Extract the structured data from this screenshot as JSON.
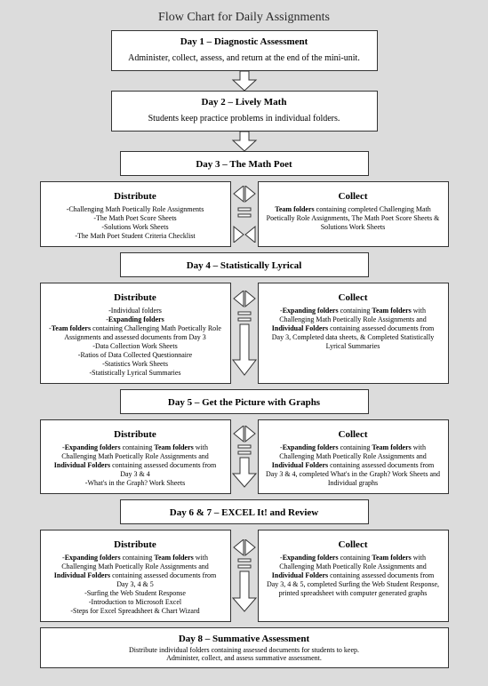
{
  "title": "Flow Chart for Daily Assignments",
  "day1": {
    "head": "Day 1 – Diagnostic Assessment",
    "sub": "Administer, collect, assess, and return at the end of the mini-unit."
  },
  "day2": {
    "head": "Day 2 – Lively Math",
    "sub": "Students keep practice problems in individual folders."
  },
  "day3": {
    "head": "Day 3 – The Math Poet"
  },
  "day3_dist": {
    "hdr": "Distribute",
    "items": [
      "-Challenging Math Poetically Role Assignments",
      "-The Math Poet Score Sheets",
      "-Solutions Work Sheets",
      "-The Math Poet Student Criteria Checklist"
    ]
  },
  "day3_coll": {
    "hdr": "Collect",
    "items": [
      "Team folders containing completed Challenging Math Poetically Role Assignments, The Math Poet Score Sheets & Solutions Work Sheets"
    ]
  },
  "day4": {
    "head": "Day 4 – Statistically Lyrical"
  },
  "day4_dist": {
    "hdr": "Distribute",
    "items": [
      "-Individual folders",
      "-Expanding folders",
      "-Team folders containing Challenging Math Poetically Role Assignments and assessed documents from Day 3",
      "-Data Collection Work Sheets",
      "-Ratios of Data Collected Questionnaire",
      "-Statistics Work Sheets",
      "-Statistically Lyrical Summaries"
    ]
  },
  "day4_coll": {
    "hdr": "Collect",
    "items": [
      "-Expanding folders containing Team folders with Challenging Math Poetically Role Assignments and Individual Folders containing assessed documents from Day 3, Completed data sheets, & Completed Statistically Lyrical Summaries"
    ]
  },
  "day5": {
    "head": "Day 5 – Get the Picture with Graphs"
  },
  "day5_dist": {
    "hdr": "Distribute",
    "items": [
      "-Expanding folders containing Team folders with Challenging Math Poetically Role Assignments and Individual Folders containing assessed documents from Day 3 & 4",
      "-What's in the Graph? Work Sheets"
    ]
  },
  "day5_coll": {
    "hdr": "Collect",
    "items": [
      "-Expanding folders containing Team folders with Challenging Math Poetically Role Assignments and Individual Folders containing assessed documents from Day 3 & 4, completed What's in the Graph? Work Sheets and Individual graphs"
    ]
  },
  "day67": {
    "head": "Day 6 & 7 – EXCEL It! and Review"
  },
  "day67_dist": {
    "hdr": "Distribute",
    "items": [
      "-Expanding folders containing Team folders with Challenging Math Poetically Role Assignments and Individual Folders containing assessed documents from Day 3, 4 & 5",
      "-Surfing the Web Student Response",
      "-Introduction to Microsoft Excel",
      "-Steps for Excel Spreadsheet & Chart Wizard"
    ]
  },
  "day67_coll": {
    "hdr": "Collect",
    "items": [
      "-Expanding folders containing Team folders with Challenging Math Poetically Role Assignments and Individual Folders containing assessed documents from Day 3, 4 & 5, completed Surfing the Web Student Response, printed spreadsheet with computer generated graphs"
    ]
  },
  "day8": {
    "head": "Day 8 – Summative Assessment",
    "sub1": "Distribute individual folders containing assessed documents for students to keep.",
    "sub2": "Administer, collect, and assess summative assessment."
  },
  "colors": {
    "arrow_fill": "#ffffff",
    "arrow_stroke": "#333333",
    "bg": "#dcdcdc"
  }
}
